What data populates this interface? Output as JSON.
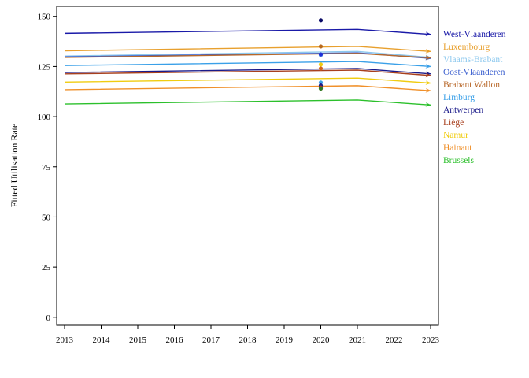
{
  "chart_data": {
    "type": "line",
    "ylabel": "Fitted Utilisation Rate",
    "xlabel": "",
    "x": [
      2013,
      2021,
      2023
    ],
    "xticks": [
      "2013",
      "2014",
      "2015",
      "2016",
      "2017",
      "2018",
      "2019",
      "2020",
      "2021",
      "2022",
      "2023"
    ],
    "yticks": [
      "0",
      "25",
      "50",
      "75",
      "100",
      "125",
      "150"
    ],
    "xlim": [
      2013,
      2023
    ],
    "ylim": [
      -4,
      155
    ],
    "grid": false,
    "legend_position": "right",
    "series": [
      {
        "name": "West-Vlaanderen",
        "color": "#1a1aa8",
        "values": [
          141.5,
          143.5,
          141.0
        ],
        "point2020": 148.0,
        "point_color": "#0a0a66"
      },
      {
        "name": "Luxembourg",
        "color": "#e8a02e",
        "values": [
          132.8,
          135.0,
          132.5
        ],
        "point2020": 135.0,
        "point_color": "#b86a1e"
      },
      {
        "name": "Vlaams-Brabant",
        "color": "#8cc8ee",
        "values": [
          130.2,
          132.5,
          129.5
        ],
        "point2020": 130.5,
        "point_color": "#8cc8ee"
      },
      {
        "name": "Oost-Vlaanderen",
        "color": "#3b5fcf",
        "values": [
          129.8,
          131.8,
          129.0
        ],
        "point2020": 131.0,
        "point_color": "#1f2fd8"
      },
      {
        "name": "Brabant Wallon",
        "color": "#b8682a",
        "values": [
          129.5,
          131.5,
          129.3
        ],
        "point2020": 124.0,
        "point_color": "#d4641e"
      },
      {
        "name": "Limburg",
        "color": "#3aa0e8",
        "values": [
          125.5,
          127.5,
          125.0
        ],
        "point2020": 117.0,
        "point_color": "#3aa0e8"
      },
      {
        "name": "Antwerpen",
        "color": "#1a1a8a",
        "values": [
          122.0,
          124.0,
          121.3
        ],
        "point2020": 115.5,
        "point_color": "#1a1a8a"
      },
      {
        "name": "Liège",
        "color": "#a8401e",
        "values": [
          121.3,
          123.2,
          120.5
        ],
        "point2020": 114.5,
        "point_color": "#a8401e"
      },
      {
        "name": "Namur",
        "color": "#f0cc10",
        "values": [
          117.2,
          119.2,
          116.7
        ],
        "point2020": 126.0,
        "point_color": "#f0cc10"
      },
      {
        "name": "Hainaut",
        "color": "#f0902a",
        "values": [
          113.4,
          115.4,
          112.9
        ],
        "point2020": 114.0,
        "point_color": "#f0902a"
      },
      {
        "name": "Brussels",
        "color": "#2cc02c",
        "values": [
          106.3,
          108.3,
          105.8
        ],
        "point2020": 114.0,
        "point_color": "#2a7a2a"
      }
    ]
  }
}
